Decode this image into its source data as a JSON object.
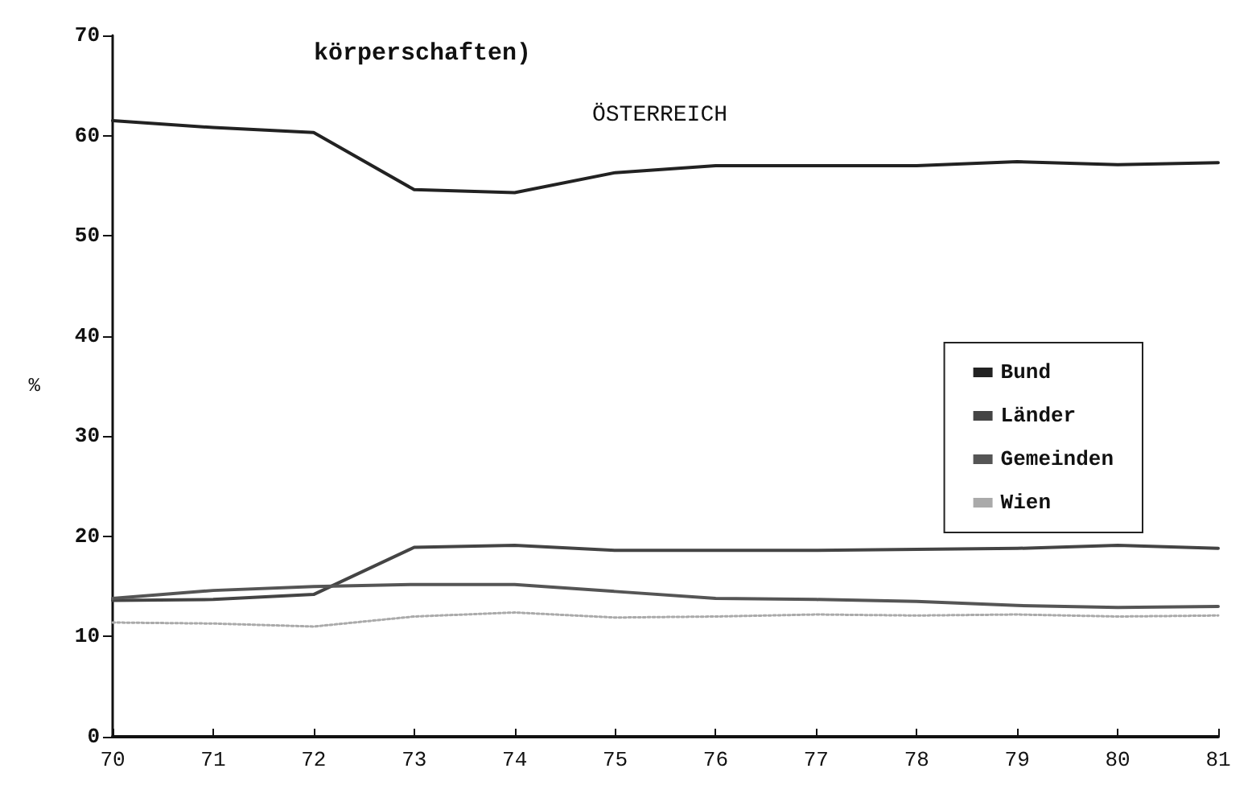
{
  "chart_data": {
    "type": "line",
    "title": "ÖSTERREICH",
    "annotations": [
      "körperschaften)"
    ],
    "ylabel": "%",
    "x": [
      70,
      71,
      72,
      73,
      74,
      75,
      76,
      77,
      78,
      79,
      80,
      81
    ],
    "xlim": [
      70,
      81
    ],
    "xticks": [
      70,
      71,
      72,
      73,
      74,
      75,
      76,
      77,
      78,
      79,
      80,
      81
    ],
    "ylim": [
      0,
      70
    ],
    "yticks": [
      0,
      10,
      20,
      30,
      40,
      50,
      60,
      70
    ],
    "grid": false,
    "legend": "right",
    "marker": "none",
    "series": [
      {
        "name": "Bund",
        "color": "#222222",
        "line_style": "solid",
        "values": [
          61.5,
          60.8,
          60.3,
          54.6,
          54.3,
          56.3,
          57.0,
          57.0,
          57.0,
          57.4,
          57.1,
          57.3
        ]
      },
      {
        "name": "Länder",
        "color": "#444444",
        "line_style": "solid",
        "values": [
          13.6,
          13.7,
          14.2,
          18.9,
          19.1,
          18.6,
          18.6,
          18.6,
          18.7,
          18.8,
          19.1,
          18.8
        ]
      },
      {
        "name": "Gemeinden",
        "color": "#555555",
        "line_style": "solid",
        "values": [
          13.8,
          14.6,
          15.0,
          15.2,
          15.2,
          14.5,
          13.8,
          13.7,
          13.5,
          13.1,
          12.9,
          13.0
        ]
      },
      {
        "name": "Wien",
        "color": "#aaaaaa",
        "line_style": "dotted",
        "values": [
          11.4,
          11.3,
          11.0,
          12.0,
          12.4,
          11.9,
          12.0,
          12.2,
          12.1,
          12.2,
          12.0,
          12.1
        ]
      }
    ]
  }
}
